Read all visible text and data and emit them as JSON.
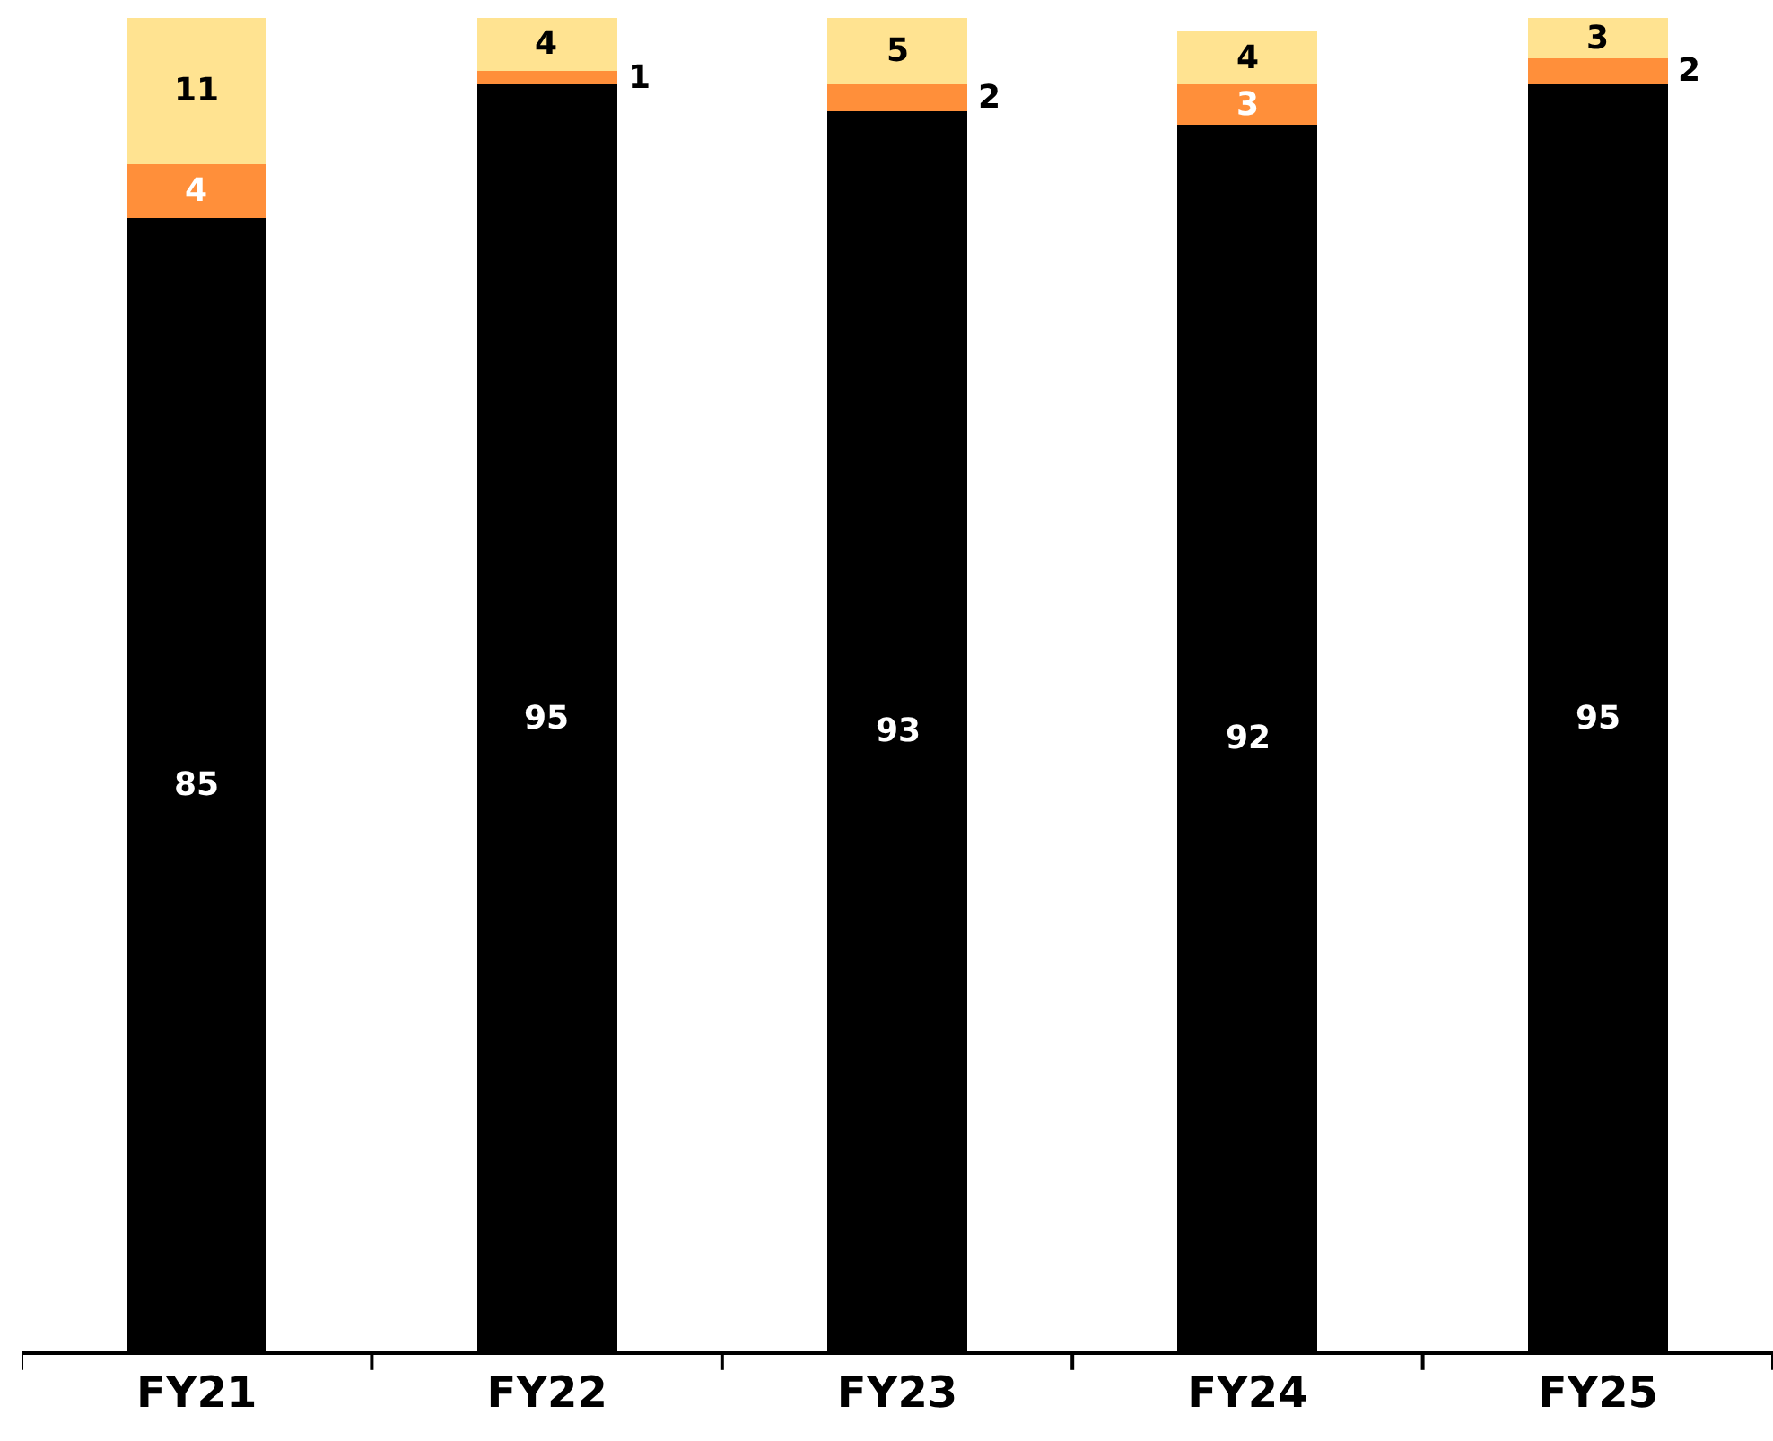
{
  "chart_data": {
    "type": "bar",
    "stacked": true,
    "categories": [
      "FY21",
      "FY22",
      "FY23",
      "FY24",
      "FY25"
    ],
    "series": [
      {
        "color": "#000000",
        "values": [
          85,
          95,
          93,
          92,
          95
        ]
      },
      {
        "color": "#ff8f3a",
        "values": [
          4,
          1,
          2,
          3,
          2
        ]
      },
      {
        "color": "#ffe391",
        "values": [
          11,
          4,
          5,
          4,
          3
        ]
      }
    ],
    "ylim": [
      0,
      100
    ],
    "data_labels": true,
    "tick_labels": "x"
  }
}
